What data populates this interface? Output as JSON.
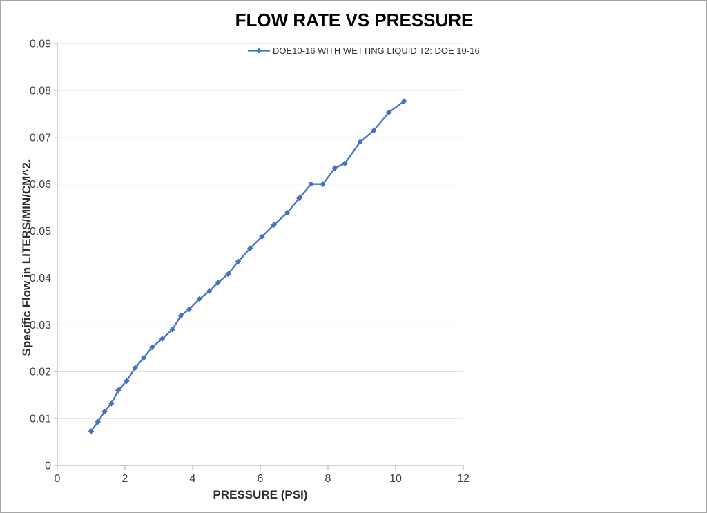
{
  "window": {
    "background": "#FFFFFF",
    "border_color": "#A6A6A6"
  },
  "chart_data": {
    "type": "line",
    "title": "FLOW RATE VS PRESSURE",
    "xlabel": "PRESSURE (PSI)",
    "ylabel": "Specific Flow in LITERS/MIN/CM^2.",
    "xlim": [
      0,
      12
    ],
    "ylim": [
      0,
      0.09
    ],
    "x_ticks": [
      "0",
      "2",
      "4",
      "6",
      "8",
      "10",
      "12"
    ],
    "y_ticks": [
      "0",
      "0.01",
      "0.02",
      "0.03",
      "0.04",
      "0.05",
      "0.06",
      "0.07",
      "0.08",
      "0.09"
    ],
    "grid": "horizontal-only",
    "legend_position": "top-center-inside",
    "colors": {
      "series": "#4472C4",
      "gridline": "#D9D9D9",
      "axis_line": "#A6A6A6",
      "tick_label": "#404040",
      "title_text": "#000000"
    },
    "series": [
      {
        "name": "DOE10-16 WITH WETTING LIQUID T2: DOE 10-16",
        "color": "#4472C4",
        "marker": "diamond",
        "x": [
          1.0,
          1.2,
          1.4,
          1.6,
          1.8,
          2.05,
          2.3,
          2.55,
          2.8,
          3.1,
          3.4,
          3.65,
          3.9,
          4.2,
          4.5,
          4.75,
          5.05,
          5.35,
          5.7,
          6.05,
          6.4,
          6.8,
          7.15,
          7.5,
          7.85,
          8.2,
          8.5,
          8.95,
          9.35,
          9.8,
          10.25
        ],
        "y": [
          0.0073,
          0.0093,
          0.0115,
          0.0132,
          0.016,
          0.018,
          0.0208,
          0.0229,
          0.0252,
          0.027,
          0.029,
          0.0319,
          0.0333,
          0.0355,
          0.0372,
          0.039,
          0.0408,
          0.0435,
          0.0463,
          0.0488,
          0.0513,
          0.0539,
          0.057,
          0.06,
          0.06,
          0.0634,
          0.0644,
          0.069,
          0.0714,
          0.0753,
          0.0777
        ]
      }
    ]
  }
}
